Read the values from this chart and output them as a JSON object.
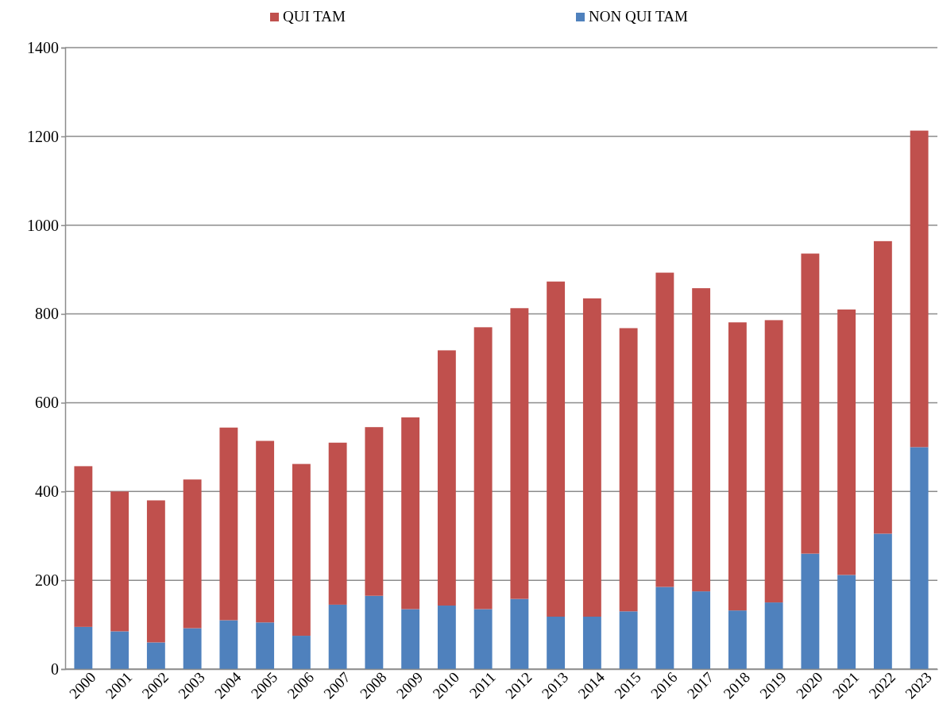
{
  "chart_data": {
    "type": "bar",
    "stacked": true,
    "legend": "top",
    "grid": "y",
    "categories": [
      "2000",
      "2001",
      "2002",
      "2003",
      "2004",
      "2005",
      "2006",
      "2007",
      "2008",
      "2009",
      "2010",
      "2011",
      "2012",
      "2013",
      "2014",
      "2015",
      "2016",
      "2017",
      "2018",
      "2019",
      "2020",
      "2021",
      "2022",
      "2023"
    ],
    "series": [
      {
        "name": "NON QUI TAM",
        "color": "#4f81bd",
        "values": [
          95,
          85,
          60,
          92,
          110,
          105,
          75,
          145,
          165,
          135,
          143,
          135,
          158,
          118,
          118,
          130,
          185,
          175,
          132,
          150,
          260,
          212,
          305,
          500
        ]
      },
      {
        "name": "QUI TAM",
        "color": "#c0504d",
        "values": [
          362,
          315,
          320,
          335,
          434,
          409,
          387,
          365,
          380,
          432,
          575,
          635,
          655,
          755,
          717,
          638,
          708,
          683,
          649,
          636,
          676,
          598,
          659,
          713
        ]
      }
    ],
    "ylim": [
      0,
      1400
    ],
    "yticks": [
      0,
      200,
      400,
      600,
      800,
      1000,
      1200,
      1400
    ]
  }
}
